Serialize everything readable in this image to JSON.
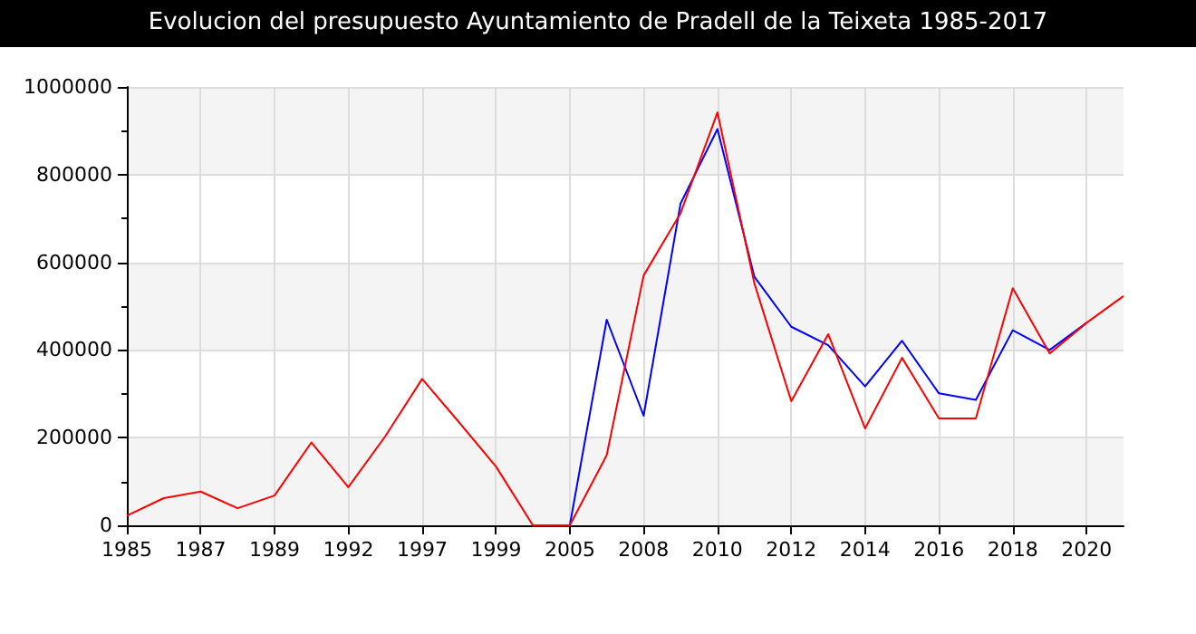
{
  "chart_data": {
    "type": "line",
    "title": "Evolucion del presupuesto Ayuntamiento de Pradell de la Teixeta 1985-2017",
    "categories": [
      "1985",
      null,
      "1987",
      null,
      "1989",
      null,
      "1992",
      null,
      "1997",
      null,
      "1999",
      null,
      "2005",
      null,
      "2008",
      null,
      "2010",
      null,
      "2012",
      null,
      "2014",
      null,
      "2016",
      null,
      "2018",
      null,
      "2020",
      null
    ],
    "series": [
      {
        "color": "#0000ff",
        "values": [
          null,
          null,
          null,
          null,
          null,
          null,
          null,
          null,
          null,
          null,
          null,
          null,
          0,
          469000,
          250000,
          734000,
          904000,
          567000,
          453000,
          411000,
          317000,
          421000,
          301000,
          286000,
          445000,
          400000,
          462000,
          null
        ]
      },
      {
        "color": "#ff0000",
        "values": [
          22000,
          62000,
          77000,
          39000,
          68000,
          189000,
          87000,
          203000,
          334000,
          235000,
          134000,
          0,
          0,
          160000,
          570000,
          712000,
          942000,
          552000,
          283000,
          436000,
          221000,
          382000,
          244000,
          244000,
          541000,
          392000,
          462000,
          523000
        ]
      }
    ],
    "ylim": [
      0,
      1000000
    ],
    "yticks": [
      0,
      200000,
      400000,
      600000,
      800000,
      1000000
    ],
    "grid": true,
    "marker": "none",
    "line_style": "solid"
  }
}
